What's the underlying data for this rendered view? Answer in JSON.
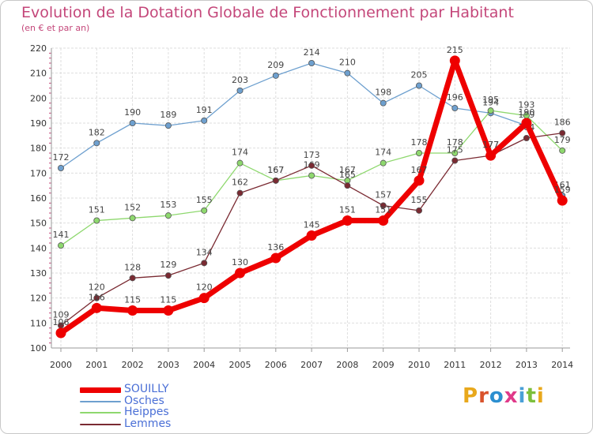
{
  "title": "Evolution de la Dotation Globale de Fonctionnement par Habitant",
  "subtitle": "(en € et par an)",
  "logo": {
    "text": "Proxiti"
  },
  "chart_data": {
    "type": "line",
    "x": [
      "2000",
      "2001",
      "2002",
      "2003",
      "2004",
      "2005",
      "2006",
      "2007",
      "2008",
      "2009",
      "2010",
      "2011",
      "2012",
      "2013",
      "2014"
    ],
    "ylim": [
      100,
      220
    ],
    "yticks": [
      100,
      110,
      120,
      130,
      140,
      150,
      160,
      170,
      180,
      190,
      200,
      210,
      220
    ],
    "grid": true,
    "legend": "bottom-left",
    "series": [
      {
        "name": "SOUILLY",
        "color": "#ee0000",
        "values": [
          106,
          116,
          115,
          115,
          120,
          130,
          136,
          145,
          151,
          151,
          167,
          215,
          177,
          190,
          159
        ]
      },
      {
        "name": "Osches",
        "color": "#6ea0cf",
        "values": [
          172,
          182,
          190,
          189,
          191,
          203,
          209,
          214,
          210,
          198,
          205,
          196,
          194,
          189,
          161
        ]
      },
      {
        "name": "Heippes",
        "color": "#8ed86e",
        "values": [
          141,
          151,
          152,
          153,
          155,
          174,
          167,
          169,
          167,
          174,
          178,
          178,
          195,
          193,
          179
        ]
      },
      {
        "name": "Lemmes",
        "color": "#7a2a32",
        "values": [
          109,
          120,
          128,
          129,
          134,
          162,
          167,
          173,
          165,
          157,
          155,
          175,
          177,
          184,
          186
        ]
      }
    ]
  }
}
